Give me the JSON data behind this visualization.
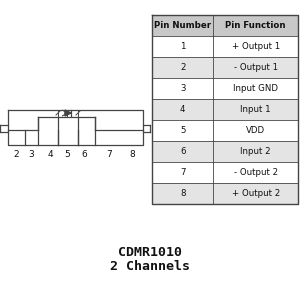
{
  "title_line1": "CDMR1010",
  "title_line2": "2 Channels",
  "table_header": [
    "Pin Number",
    "Pin Function"
  ],
  "table_rows": [
    [
      "1",
      "+ Output 1"
    ],
    [
      "2",
      "- Output 1"
    ],
    [
      "3",
      "Input GND"
    ],
    [
      "4",
      "Input 1"
    ],
    [
      "5",
      "VDD"
    ],
    [
      "6",
      "Input 2"
    ],
    [
      "7",
      "- Output 2"
    ],
    [
      "8",
      "+ Output 2"
    ]
  ],
  "background_color": "#ffffff",
  "table_header_bg": "#c8c8c8",
  "table_row_bg_odd": "#ffffff",
  "table_row_bg_even": "#e4e4e4",
  "line_color": "#444444",
  "text_color": "#111111",
  "title_fontsize": 9.5,
  "table_fontsize": 6.2,
  "pin_label_fontsize": 6.5
}
